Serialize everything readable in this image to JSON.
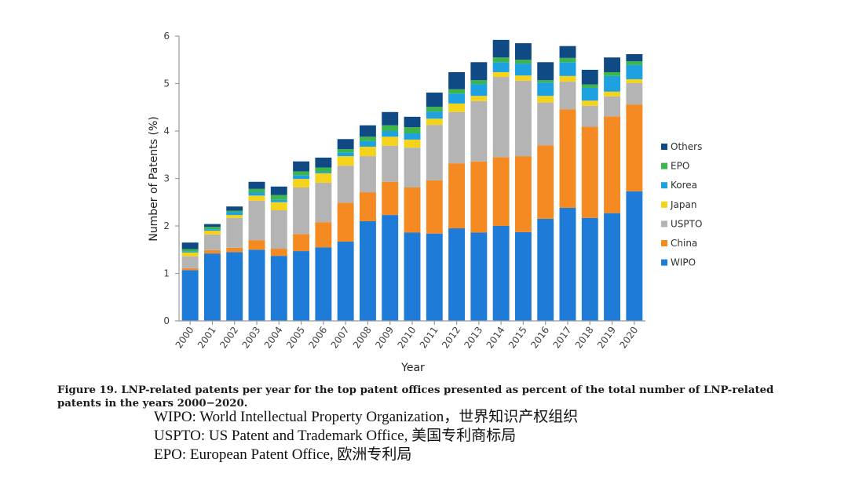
{
  "chart_data": {
    "type": "bar",
    "stacked": true,
    "title": "",
    "xlabel": "Year",
    "ylabel": "Number of Patents (%)",
    "ylim": [
      0,
      6
    ],
    "yticks": [
      0,
      1,
      2,
      3,
      4,
      5,
      6
    ],
    "grid": false,
    "legend_position": "right",
    "categories": [
      "2000",
      "2001",
      "2002",
      "2003",
      "2004",
      "2005",
      "2006",
      "2007",
      "2008",
      "2009",
      "2010",
      "2011",
      "2012",
      "2013",
      "2014",
      "2015",
      "2016",
      "2017",
      "2018",
      "2019",
      "2020"
    ],
    "series": [
      {
        "name": "WIPO",
        "color": "#1f7bd8",
        "values": [
          1.07,
          1.42,
          1.45,
          1.5,
          1.37,
          1.47,
          1.55,
          1.67,
          2.1,
          2.23,
          1.86,
          1.84,
          1.95,
          1.86,
          2.0,
          1.87,
          2.15,
          2.38,
          2.17,
          2.27,
          2.73
        ]
      },
      {
        "name": "China",
        "color": "#f58a23",
        "values": [
          0.04,
          0.07,
          0.09,
          0.2,
          0.15,
          0.36,
          0.53,
          0.82,
          0.61,
          0.7,
          0.95,
          1.12,
          1.37,
          1.5,
          1.45,
          1.6,
          1.55,
          2.08,
          1.92,
          2.04,
          1.83
        ]
      },
      {
        "name": "USPTO",
        "color": "#b4b4b4",
        "values": [
          0.25,
          0.33,
          0.63,
          0.83,
          0.81,
          0.98,
          0.83,
          0.78,
          0.76,
          0.76,
          0.84,
          1.17,
          1.08,
          1.27,
          1.69,
          1.59,
          0.9,
          0.58,
          0.44,
          0.42,
          0.45
        ]
      },
      {
        "name": "Japan",
        "color": "#f5d31a",
        "values": [
          0.08,
          0.08,
          0.06,
          0.11,
          0.17,
          0.18,
          0.2,
          0.2,
          0.2,
          0.19,
          0.17,
          0.13,
          0.18,
          0.11,
          0.1,
          0.11,
          0.14,
          0.12,
          0.11,
          0.1,
          0.08
        ]
      },
      {
        "name": "Korea",
        "color": "#1ea1e0",
        "values": [
          0.02,
          0.03,
          0.06,
          0.07,
          0.05,
          0.08,
          0.03,
          0.08,
          0.12,
          0.12,
          0.13,
          0.15,
          0.21,
          0.25,
          0.21,
          0.25,
          0.28,
          0.29,
          0.27,
          0.33,
          0.3
        ]
      },
      {
        "name": "EPO",
        "color": "#3cb54a",
        "values": [
          0.05,
          0.05,
          0.03,
          0.07,
          0.1,
          0.08,
          0.09,
          0.07,
          0.09,
          0.12,
          0.13,
          0.1,
          0.09,
          0.08,
          0.1,
          0.08,
          0.05,
          0.09,
          0.07,
          0.08,
          0.08
        ]
      },
      {
        "name": "Others",
        "color": "#0f4a85",
        "values": [
          0.14,
          0.06,
          0.09,
          0.15,
          0.18,
          0.21,
          0.21,
          0.21,
          0.24,
          0.28,
          0.22,
          0.3,
          0.36,
          0.38,
          0.37,
          0.35,
          0.38,
          0.25,
          0.31,
          0.31,
          0.15
        ]
      }
    ]
  },
  "caption": {
    "text": "Figure 19. LNP-related patents per year for the top patent offices presented as percent of the total number of LNP-related patents in the years 2000−2020."
  },
  "notes": [
    "WIPO: World Intellectual Property Organization，世界知识产权组织",
    "USPTO: US Patent and Trademark Office, 美国专利商标局",
    "EPO: European Patent Office, 欧洲专利局"
  ]
}
